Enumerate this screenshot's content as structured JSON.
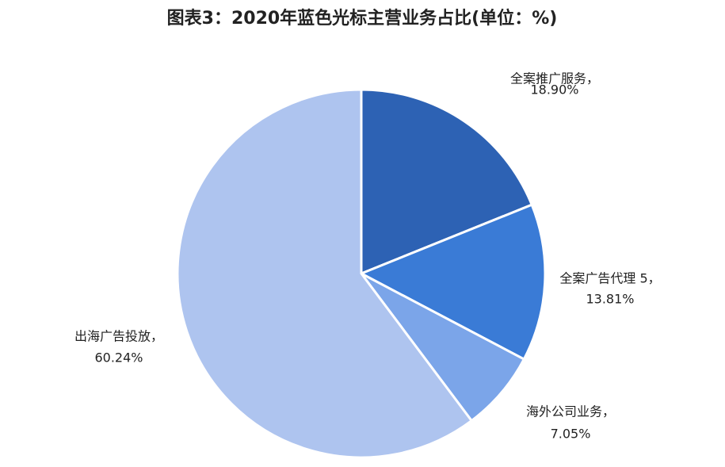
{
  "chart_data": {
    "type": "pie",
    "title": "图表3：2020年蓝色光标主营业务占比(单位：%)",
    "categories": [
      "全案推广服务，",
      "全案广告代理 5，",
      "海外公司业务，",
      "出海广告投放，"
    ],
    "values": [
      18.9,
      13.81,
      7.05,
      60.24
    ],
    "value_labels": [
      "18.90%",
      "13.81%",
      "7.05%",
      "60.24%"
    ],
    "colors": [
      "#2d62b4",
      "#3a7bd6",
      "#7ba5e9",
      "#aec4ef"
    ]
  }
}
